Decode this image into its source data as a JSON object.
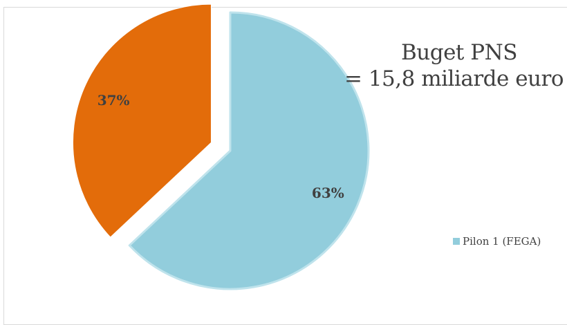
{
  "chart_data": {
    "type": "pie",
    "title_line1": "Buget PNS",
    "title_line2": "= 15,8 miliarde euro",
    "slices": [
      {
        "name": "Pilon 1 (FEGA)",
        "value": 63,
        "label": "63%",
        "color": "#92cddc",
        "exploded": false
      },
      {
        "name": "",
        "value": 37,
        "label": "37%",
        "color": "#e36c0a",
        "exploded": true
      }
    ],
    "legend": {
      "position": "right",
      "entries": [
        "Pilon 1 (FEGA)"
      ]
    }
  },
  "colors": {
    "pilon1": "#92cddc",
    "pilon2": "#e36c0a",
    "border": "#d9d9d9",
    "text": "#404040"
  }
}
